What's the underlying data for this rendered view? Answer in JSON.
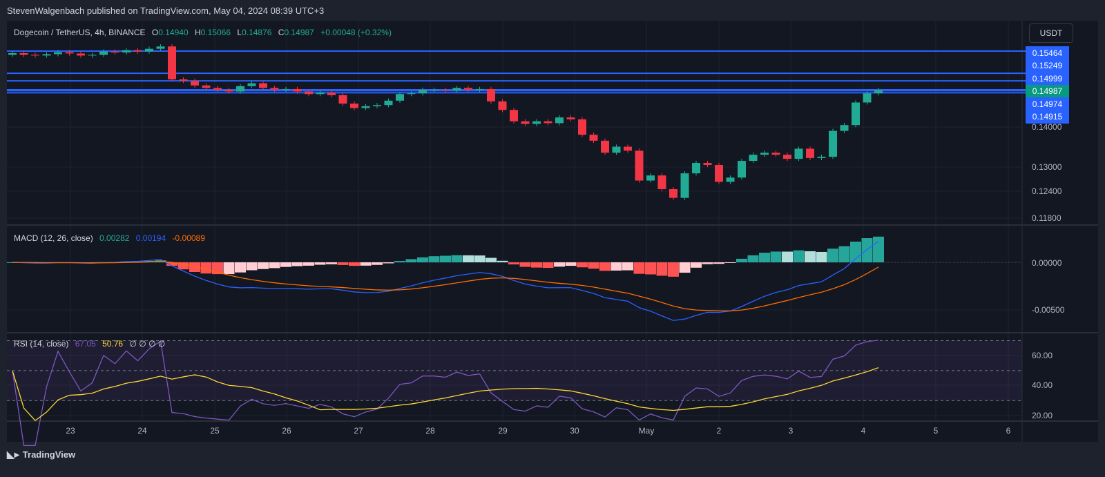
{
  "publisher_line": "StevenWalgenbach published on TradingView.com, May 04, 2024 08:39 UTC+3",
  "symbol": {
    "title": "Dogecoin / TetherUS, 4h, BINANCE",
    "o_label": "O",
    "o": "0.14940",
    "h_label": "H",
    "h": "0.15066",
    "l_label": "L",
    "l": "0.14876",
    "c_label": "C",
    "c": "0.14987",
    "change": "+0.00048 (+0.32%)"
  },
  "currency_button": "USDT",
  "colors": {
    "up": "#22ab94",
    "down": "#f23645",
    "line": "#2962ff",
    "macd": "#2962ff",
    "signal": "#ff6d00",
    "rsi": "#7e57c2",
    "rsi_ma": "#fdd835",
    "bg": "#131722"
  },
  "horizontal_lines": [
    "0.15464",
    "0.15249",
    "0.14999",
    "0.14974",
    "0.14915"
  ],
  "current_price_label": "0.14987",
  "price_axis": [
    "0.14000",
    "0.13000",
    "0.12400",
    "0.11800"
  ],
  "macd": {
    "title": "MACD (12, 26, close)",
    "hist": "0.00282",
    "macd": "0.00194",
    "signal": "-0.00089",
    "axis": [
      "0.00000",
      "-0.00500"
    ]
  },
  "rsi": {
    "title": "RSI (14, close)",
    "value": "67.05",
    "ma": "50.76",
    "extra": "∅ ∅ ∅ ∅",
    "axis": [
      "60.00",
      "40.00",
      "20.00"
    ]
  },
  "date_axis": [
    "23",
    "24",
    "25",
    "26",
    "27",
    "28",
    "29",
    "30",
    "May",
    "2",
    "3",
    "4",
    "5",
    "6"
  ],
  "logo": "TradingView",
  "chart_data": {
    "type": "candlestick",
    "interval": "4h",
    "price_scale": "log",
    "first_open": 0.16,
    "closes": [
      0.1605,
      0.16,
      0.1598,
      0.1602,
      0.1608,
      0.1604,
      0.1598,
      0.16,
      0.161,
      0.1607,
      0.1614,
      0.161,
      0.1618,
      0.1625,
      0.1529,
      0.1525,
      0.1512,
      0.1505,
      0.15,
      0.1495,
      0.151,
      0.1518,
      0.1505,
      0.15,
      0.1502,
      0.1495,
      0.1488,
      0.1492,
      0.1485,
      0.1462,
      0.145,
      0.1455,
      0.1458,
      0.147,
      0.1488,
      0.149,
      0.15,
      0.15,
      0.1498,
      0.1505,
      0.15,
      0.1502,
      0.1468,
      0.1445,
      0.1415,
      0.1408,
      0.1415,
      0.141,
      0.1425,
      0.142,
      0.138,
      0.1365,
      0.1335,
      0.135,
      0.134,
      0.1268,
      0.128,
      0.1248,
      0.1228,
      0.1285,
      0.131,
      0.1305,
      0.1265,
      0.1275,
      0.1315,
      0.133,
      0.1335,
      0.133,
      0.132,
      0.1345,
      0.1322,
      0.1325,
      0.139,
      0.1405,
      0.1465,
      0.149,
      0.1499
    ]
  }
}
